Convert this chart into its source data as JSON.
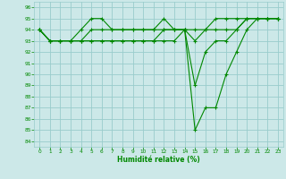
{
  "xlabel": "Humidité relative (%)",
  "bg_color": "#cce8e8",
  "grid_color": "#99cccc",
  "line_color": "#008800",
  "xlim": [
    -0.5,
    23.5
  ],
  "ylim": [
    83.5,
    96.5
  ],
  "yticks": [
    84,
    85,
    86,
    87,
    88,
    89,
    90,
    91,
    92,
    93,
    94,
    95,
    96
  ],
  "xticks": [
    0,
    1,
    2,
    3,
    4,
    5,
    6,
    7,
    8,
    9,
    10,
    11,
    12,
    13,
    14,
    15,
    16,
    17,
    18,
    19,
    20,
    21,
    22,
    23
  ],
  "series": [
    [
      94,
      93,
      93,
      93,
      94,
      95,
      95,
      94,
      94,
      94,
      94,
      94,
      95,
      94,
      94,
      85,
      87,
      87,
      90,
      92,
      94,
      95,
      95,
      95
    ],
    [
      94,
      93,
      93,
      93,
      93,
      94,
      94,
      94,
      94,
      94,
      94,
      94,
      94,
      94,
      94,
      89,
      92,
      93,
      93,
      94,
      95,
      95,
      95,
      95
    ],
    [
      94,
      93,
      93,
      93,
      93,
      93,
      93,
      93,
      93,
      93,
      93,
      93,
      94,
      94,
      94,
      93,
      94,
      94,
      94,
      94,
      95,
      95,
      95,
      95
    ],
    [
      94,
      93,
      93,
      93,
      93,
      93,
      93,
      93,
      93,
      93,
      93,
      93,
      93,
      93,
      94,
      94,
      94,
      95,
      95,
      95,
      95,
      95,
      95,
      95
    ]
  ]
}
